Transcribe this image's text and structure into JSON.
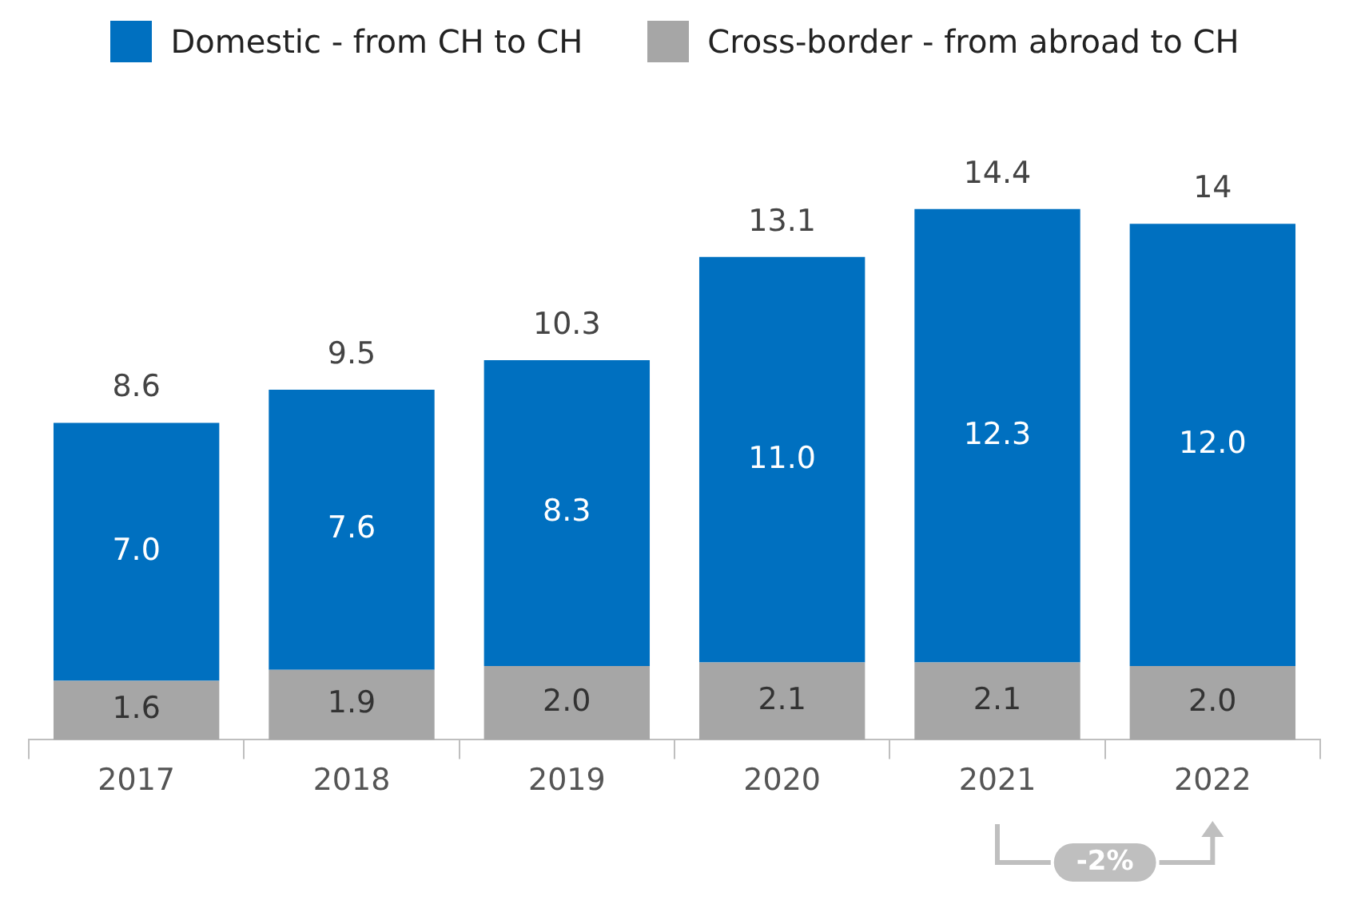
{
  "chart_data": {
    "type": "bar",
    "stacked": true,
    "categories": [
      "2017",
      "2018",
      "2019",
      "2020",
      "2021",
      "2022"
    ],
    "series": [
      {
        "name": "Cross-border - from abroad to CH",
        "color": "#a6a6a6",
        "values": [
          1.6,
          1.9,
          2.0,
          2.1,
          2.1,
          2.0
        ],
        "value_labels": [
          "1.6",
          "1.9",
          "2.0",
          "2.1",
          "2.1",
          "2.0"
        ]
      },
      {
        "name": "Domestic - from CH to CH",
        "color": "#0070c0",
        "values": [
          7.0,
          7.6,
          8.3,
          11.0,
          12.3,
          12.0
        ],
        "value_labels": [
          "7.0",
          "7.6",
          "8.3",
          "11.0",
          "12.3",
          "12.0"
        ]
      }
    ],
    "totals": [
      "8.6",
      "9.5",
      "10.3",
      "13.1",
      "14.4",
      "14"
    ],
    "annotations": [
      "-2%"
    ],
    "legend": "top",
    "grid": false
  }
}
